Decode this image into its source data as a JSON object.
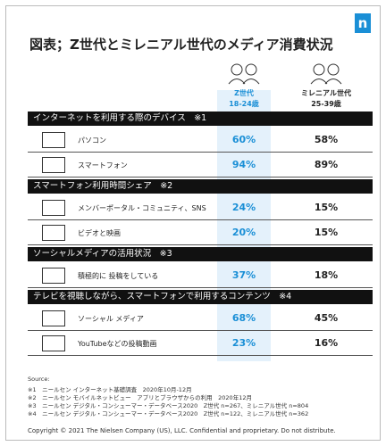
{
  "header": {
    "title": "図表；Z世代とミレニアル世代のメディア消費状況",
    "logo": "n"
  },
  "columns": [
    {
      "name": "Z世代",
      "age": "18-24歳"
    },
    {
      "name": "ミレニアル世代",
      "age": "25-39歳"
    }
  ],
  "sections": [
    {
      "title": "インターネットを利用する際のデバイス　※1",
      "rows": [
        {
          "label": "パソコン",
          "z": "60%",
          "m": "58%"
        },
        {
          "label": "スマートフォン",
          "z": "94%",
          "m": "89%"
        }
      ]
    },
    {
      "title": "スマートフォン利用時間シェア　※2",
      "rows": [
        {
          "label": "メンバーポータル・コミュニティ、SNS",
          "z": "24%",
          "m": "15%"
        },
        {
          "label": "ビデオと映画",
          "z": "20%",
          "m": "15%"
        }
      ]
    },
    {
      "title": "ソーシャルメディアの活用状況　※3",
      "rows": [
        {
          "label": "積極的に 投稿をしている",
          "z": "37%",
          "m": "18%"
        }
      ]
    },
    {
      "title": "テレビを視聴しながら、スマートフォンで利用するコンテンツ　※4",
      "rows": [
        {
          "label": "ソーシャル メディア",
          "z": "68%",
          "m": "45%"
        },
        {
          "label": "YouTubeなどの投稿動画",
          "z": "23%",
          "m": "16%"
        }
      ]
    }
  ],
  "sources": {
    "heading": "Source:",
    "lines": [
      "※1　ニールセン インターネット基礎調査　2020年10月-12月",
      "※2　ニールセン モバイルネットビュー　アプリとブラウザからの利用　2020年12月",
      "※3　ニールセン デジタル・コンシューマー・データベース2020　Z世代 n=267、ミレニアル世代 n=804",
      "※4　ニールセン デジタル・コンシューマー・データベース2020　Z世代 n=122、ミレニアル世代 n=362"
    ]
  },
  "footer": {
    "copyright": "Copyright © 2021 The Nielsen Company (US), LLC. Confidential and proprietary. Do not distribute."
  }
}
